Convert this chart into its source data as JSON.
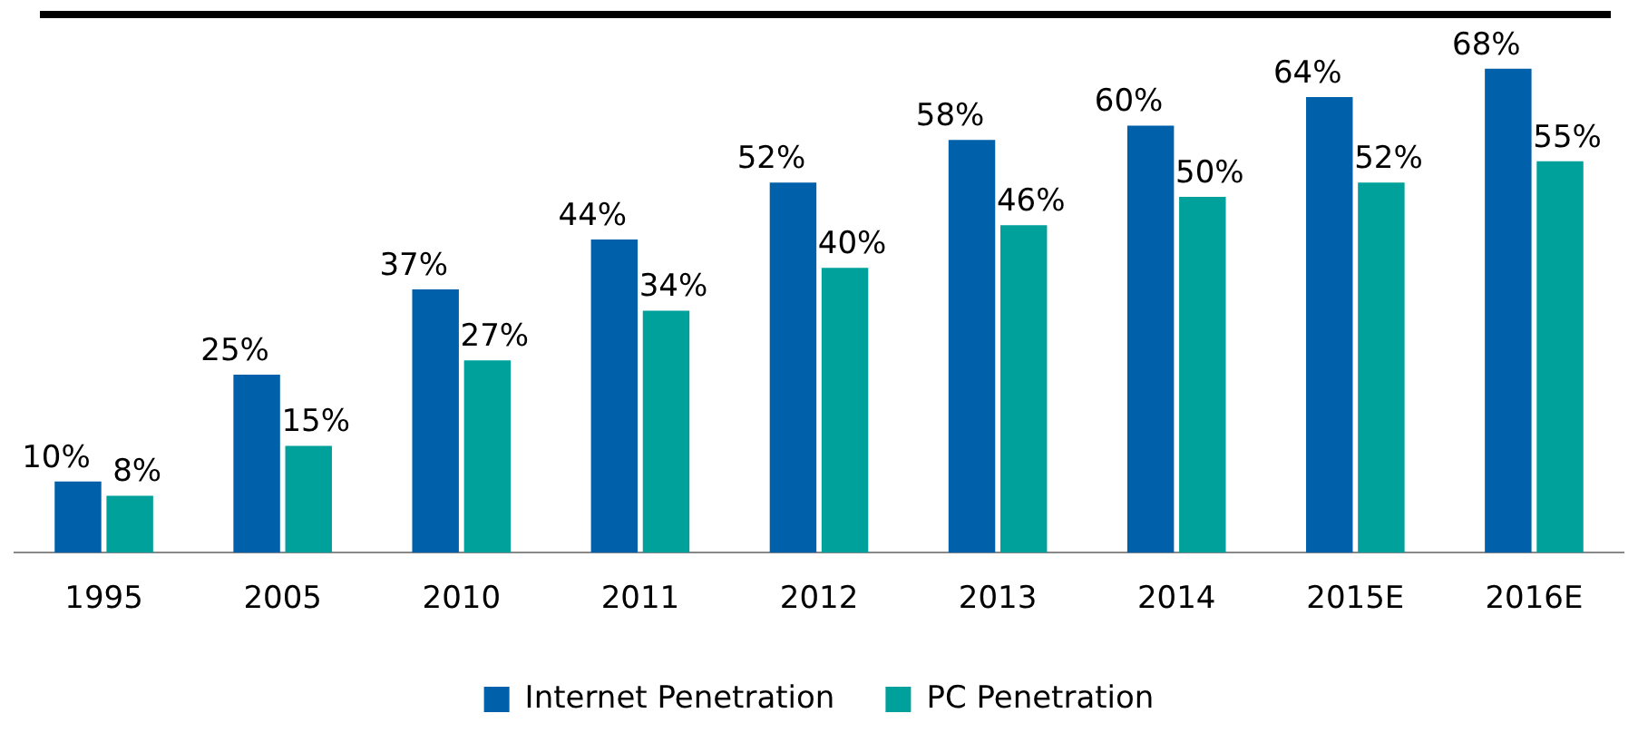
{
  "chart_data": {
    "type": "bar",
    "categories": [
      "1995",
      "2005",
      "2010",
      "2011",
      "2012",
      "2013",
      "2014",
      "2015E",
      "2016E"
    ],
    "series": [
      {
        "name": "Internet Penetration",
        "color": "#0060a9",
        "values": [
          10,
          25,
          37,
          44,
          52,
          58,
          60,
          64,
          68
        ],
        "value_labels": [
          "10%",
          "25%",
          "37%",
          "44%",
          "52%",
          "58%",
          "60%",
          "64%",
          "68%"
        ]
      },
      {
        "name": "PC Penetration",
        "color": "#00a19a",
        "values": [
          8,
          15,
          27,
          34,
          40,
          46,
          50,
          52,
          55
        ],
        "value_labels": [
          "8%",
          "15%",
          "27%",
          "34%",
          "40%",
          "46%",
          "50%",
          "52%",
          "55%"
        ]
      }
    ],
    "legend": "bottom",
    "grid": false,
    "tick_labels": "x"
  }
}
